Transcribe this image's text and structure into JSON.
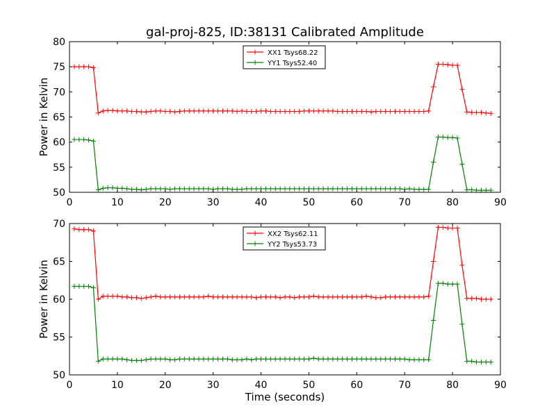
{
  "figure": {
    "title": "gal-proj-825, ID:38131 Calibrated Amplitude"
  },
  "chart_data": [
    {
      "type": "line",
      "title": "gal-proj-825, ID:38131 Calibrated Amplitude",
      "xlabel": "",
      "ylabel": "Power in Kelvin",
      "xlim": [
        0,
        90
      ],
      "ylim": [
        50,
        80
      ],
      "xticks": [
        0,
        10,
        20,
        30,
        40,
        50,
        60,
        70,
        80,
        90
      ],
      "yticks": [
        50,
        55,
        60,
        65,
        70,
        75,
        80
      ],
      "grid": false,
      "legend_position": "top-center",
      "x": [
        1,
        2,
        3,
        4,
        5,
        6,
        7,
        8,
        9,
        10,
        11,
        12,
        13,
        14,
        15,
        16,
        17,
        18,
        19,
        20,
        21,
        22,
        23,
        24,
        25,
        26,
        27,
        28,
        29,
        30,
        31,
        32,
        33,
        34,
        35,
        36,
        37,
        38,
        39,
        40,
        41,
        42,
        43,
        44,
        45,
        46,
        47,
        48,
        49,
        50,
        51,
        52,
        53,
        54,
        55,
        56,
        57,
        58,
        59,
        60,
        61,
        62,
        63,
        64,
        65,
        66,
        67,
        68,
        69,
        70,
        71,
        72,
        73,
        74,
        75,
        76,
        77,
        78,
        79,
        80,
        81,
        82,
        83,
        84,
        85,
        86,
        87,
        88
      ],
      "series": [
        {
          "name": "XX1 Tsys68.22",
          "color": "#ff0000",
          "values": [
            75,
            75,
            75,
            75,
            74.8,
            65.8,
            66.2,
            66.3,
            66.3,
            66.2,
            66.2,
            66.2,
            66.1,
            66.1,
            66,
            66,
            66.1,
            66.2,
            66.2,
            66.1,
            66.1,
            66,
            66.1,
            66.2,
            66.2,
            66.2,
            66.2,
            66.2,
            66.2,
            66.2,
            66.2,
            66.2,
            66.2,
            66.2,
            66.1,
            66.2,
            66.1,
            66.1,
            66.1,
            66.2,
            66.2,
            66.1,
            66.1,
            66.1,
            66.1,
            66.1,
            66.1,
            66.1,
            66.2,
            66.2,
            66.2,
            66.2,
            66.2,
            66.2,
            66.2,
            66.1,
            66.1,
            66.1,
            66.1,
            66.1,
            66.1,
            66.1,
            66,
            66.1,
            66.1,
            66.1,
            66.1,
            66.1,
            66.1,
            66.1,
            66.1,
            66.1,
            66.1,
            66.1,
            66.2,
            71,
            75.5,
            75.5,
            75.4,
            75.3,
            75.3,
            70.5,
            66,
            65.9,
            65.9,
            65.9,
            65.8,
            65.7
          ]
        },
        {
          "name": "YY1 Tsys52.40",
          "color": "#008000",
          "values": [
            60.5,
            60.5,
            60.5,
            60.4,
            60.2,
            50.5,
            50.8,
            50.9,
            50.9,
            50.8,
            50.8,
            50.7,
            50.6,
            50.6,
            50.5,
            50.6,
            50.7,
            50.7,
            50.7,
            50.7,
            50.6,
            50.7,
            50.7,
            50.7,
            50.7,
            50.7,
            50.7,
            50.7,
            50.7,
            50.6,
            50.7,
            50.7,
            50.7,
            50.6,
            50.6,
            50.6,
            50.7,
            50.7,
            50.7,
            50.7,
            50.7,
            50.7,
            50.7,
            50.7,
            50.7,
            50.7,
            50.7,
            50.7,
            50.7,
            50.7,
            50.7,
            50.7,
            50.7,
            50.7,
            50.7,
            50.7,
            50.7,
            50.7,
            50.7,
            50.7,
            50.7,
            50.7,
            50.7,
            50.7,
            50.7,
            50.7,
            50.7,
            50.7,
            50.7,
            50.6,
            50.7,
            50.6,
            50.6,
            50.6,
            50.6,
            56,
            61,
            61,
            60.9,
            60.9,
            60.8,
            55.6,
            50.5,
            50.5,
            50.4,
            50.4,
            50.4,
            50.4
          ]
        }
      ]
    },
    {
      "type": "line",
      "title": "",
      "xlabel": "Time (seconds)",
      "ylabel": "Power in Kelvin",
      "xlim": [
        0,
        90
      ],
      "ylim": [
        50,
        70
      ],
      "xticks": [
        0,
        10,
        20,
        30,
        40,
        50,
        60,
        70,
        80,
        90
      ],
      "yticks": [
        50,
        55,
        60,
        65,
        70
      ],
      "grid": false,
      "legend_position": "top-center",
      "x": [
        1,
        2,
        3,
        4,
        5,
        6,
        7,
        8,
        9,
        10,
        11,
        12,
        13,
        14,
        15,
        16,
        17,
        18,
        19,
        20,
        21,
        22,
        23,
        24,
        25,
        26,
        27,
        28,
        29,
        30,
        31,
        32,
        33,
        34,
        35,
        36,
        37,
        38,
        39,
        40,
        41,
        42,
        43,
        44,
        45,
        46,
        47,
        48,
        49,
        50,
        51,
        52,
        53,
        54,
        55,
        56,
        57,
        58,
        59,
        60,
        61,
        62,
        63,
        64,
        65,
        66,
        67,
        68,
        69,
        70,
        71,
        72,
        73,
        74,
        75,
        76,
        77,
        78,
        79,
        80,
        81,
        82,
        83,
        84,
        85,
        86,
        87,
        88
      ],
      "series": [
        {
          "name": "XX2 Tsys62.11",
          "color": "#ff0000",
          "values": [
            69.3,
            69.2,
            69.2,
            69.2,
            69,
            60,
            60.4,
            60.4,
            60.4,
            60.4,
            60.3,
            60.3,
            60.2,
            60.2,
            60.1,
            60.2,
            60.3,
            60.4,
            60.3,
            60.3,
            60.3,
            60.3,
            60.3,
            60.3,
            60.3,
            60.3,
            60.3,
            60.3,
            60.4,
            60.3,
            60.3,
            60.3,
            60.3,
            60.3,
            60.3,
            60.3,
            60.3,
            60.3,
            60.2,
            60.3,
            60.3,
            60.3,
            60.3,
            60.2,
            60.3,
            60.3,
            60.2,
            60.3,
            60.3,
            60.3,
            60.4,
            60.3,
            60.3,
            60.3,
            60.3,
            60.3,
            60.3,
            60.3,
            60.3,
            60.3,
            60.3,
            60.4,
            60.3,
            60.2,
            60.2,
            60.3,
            60.3,
            60.3,
            60.3,
            60.3,
            60.3,
            60.3,
            60.3,
            60.3,
            60.4,
            65,
            69.5,
            69.5,
            69.4,
            69.4,
            69.4,
            64.5,
            60.1,
            60.1,
            60.1,
            60,
            60,
            60
          ]
        },
        {
          "name": "YY2 Tsys53.73",
          "color": "#008000",
          "values": [
            61.7,
            61.7,
            61.7,
            61.7,
            61.5,
            51.8,
            52.1,
            52.1,
            52.1,
            52.1,
            52.1,
            52,
            51.9,
            51.9,
            51.9,
            52,
            52.1,
            52.1,
            52.1,
            52.1,
            52,
            52,
            52.1,
            52.1,
            52.1,
            52.1,
            52.1,
            52.1,
            52.1,
            52.1,
            52.1,
            52.1,
            52.1,
            52,
            52,
            52,
            52.1,
            52,
            52.1,
            52.1,
            52.1,
            52.1,
            52.1,
            52.1,
            52.1,
            52.1,
            52.1,
            52.1,
            52.1,
            52.1,
            52.2,
            52.1,
            52.1,
            52.1,
            52.1,
            52.1,
            52.1,
            52.1,
            52.1,
            52.1,
            52.1,
            52.1,
            52.1,
            52.1,
            52.1,
            52.1,
            52.1,
            52.1,
            52.1,
            52.1,
            52,
            52,
            52,
            52,
            52,
            57.2,
            62.1,
            62.1,
            62,
            62,
            62,
            56.7,
            51.8,
            51.8,
            51.7,
            51.7,
            51.7,
            51.7
          ]
        }
      ]
    }
  ]
}
